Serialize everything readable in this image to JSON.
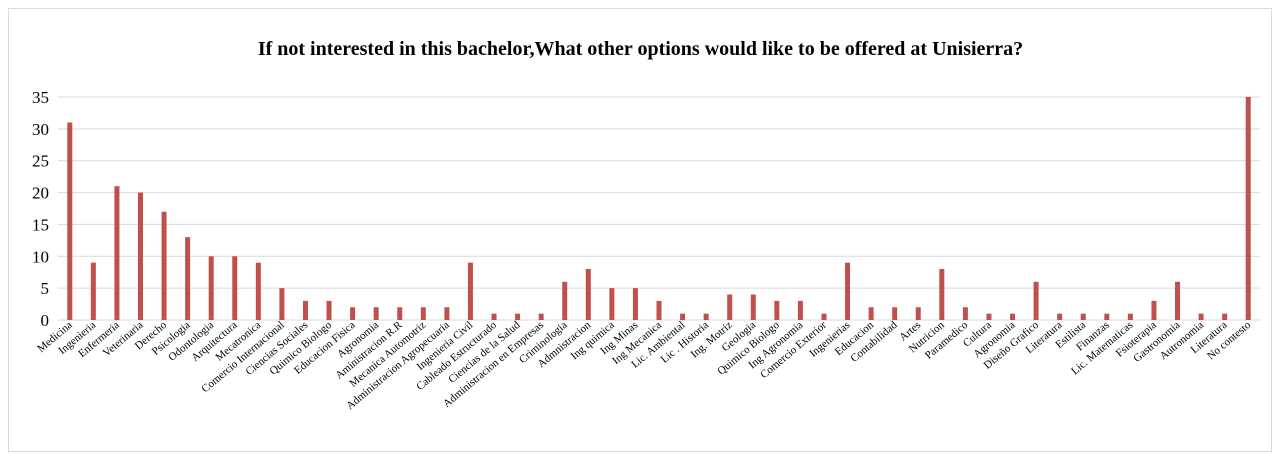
{
  "chart_data": {
    "type": "bar",
    "title": "If not interested in this bachelor,What other options would like to be offered at Unisierra?",
    "xlabel": "",
    "ylabel": "",
    "ylim": [
      0,
      35
    ],
    "yticks": [
      0,
      5,
      10,
      15,
      20,
      25,
      30,
      35
    ],
    "grid": true,
    "legend": "none",
    "bar_color": "#c0504d",
    "grid_color": "#d9d9d9",
    "categories": [
      "Medicina",
      "Ingenieria",
      "Enfermeria",
      "Veterinaria",
      "Derecho",
      "Psicologia",
      "Odontologia",
      "Arquitectura",
      "Mecatronica",
      "Comercio Internacional",
      "Ciencias Sociales",
      "Quimico Biologo",
      "Educacion Fisica",
      "Agronomia",
      "Aministracion R.R",
      "Mecanica Automotriz",
      "Administracion Agropecuaria",
      "Ingenieria Civil",
      "Cableado Estructurado",
      "Ciencias de la Salud",
      "Administracion en Empresas",
      "Criminologia",
      "Admnistracion",
      "Ing quimica",
      "Ing Minas",
      "Ing Mecanica",
      "Lic. Ambiental",
      "Lic . Historia",
      "Ing. Motriz",
      "Geologia",
      "Quimico Biologo",
      "Ing Agronomia",
      "Comercio Exterior",
      "Ingenierias",
      "Educacion",
      "Contabilidad",
      "Artes",
      "Nutricion",
      "Paramedico",
      "Cultura",
      "Agronomia",
      "Diseño Grafico",
      "Literatura",
      "Estilista",
      "Finanzas",
      "Lic. Matematicas",
      "Fsioterapia",
      "Gastronomia",
      "Autronomia",
      "Literatura",
      "No contesto"
    ],
    "values": [
      31,
      9,
      21,
      20,
      17,
      13,
      10,
      10,
      9,
      5,
      3,
      3,
      2,
      2,
      2,
      2,
      2,
      9,
      1,
      1,
      1,
      6,
      8,
      5,
      5,
      3,
      1,
      1,
      4,
      4,
      3,
      3,
      1,
      9,
      2,
      2,
      2,
      8,
      2,
      1,
      1,
      6,
      1,
      1,
      1,
      1,
      3,
      6,
      1,
      1,
      35
    ]
  }
}
